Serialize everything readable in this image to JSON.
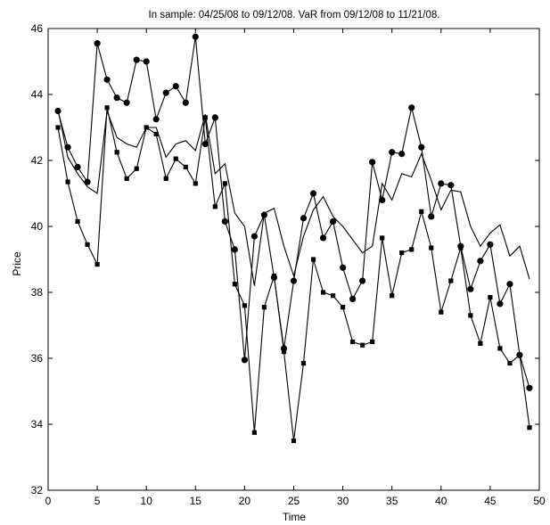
{
  "chart_data": {
    "type": "line",
    "title": "In sample: 04/25/08 to 09/12/08. VaR from 09/12/08 to 11/21/08.",
    "xlabel": "Time",
    "ylabel": "Price",
    "xlim": [
      0,
      50
    ],
    "ylim": [
      32,
      46
    ],
    "xticks": [
      0,
      5,
      10,
      15,
      20,
      25,
      30,
      35,
      40,
      45,
      50
    ],
    "yticks": [
      32,
      34,
      36,
      38,
      40,
      42,
      44,
      46
    ],
    "grid": false,
    "legend": "none",
    "x": [
      1,
      2,
      3,
      4,
      5,
      6,
      7,
      8,
      9,
      10,
      11,
      12,
      13,
      14,
      15,
      16,
      17,
      18,
      19,
      20,
      21,
      22,
      23,
      24,
      25,
      26,
      27,
      28,
      29,
      30,
      31,
      32,
      33,
      34,
      35,
      36,
      37,
      38,
      39,
      40,
      41,
      42,
      43,
      44,
      45,
      46,
      47,
      48,
      49
    ],
    "series": [
      {
        "marker": "circle",
        "values": [
          43.5,
          42.4,
          41.8,
          41.35,
          45.55,
          44.45,
          43.9,
          43.75,
          45.05,
          45.0,
          43.25,
          44.05,
          44.25,
          43.75,
          45.75,
          42.5,
          43.3,
          40.15,
          39.3,
          35.95,
          39.7,
          40.35,
          38.45,
          36.3,
          38.35,
          40.25,
          41.0,
          39.65,
          40.15,
          38.75,
          37.8,
          38.35,
          41.95,
          40.8,
          42.25,
          42.2,
          43.6,
          42.4,
          40.3,
          41.3,
          41.25,
          39.4,
          38.1,
          38.95,
          39.45,
          37.65,
          38.25,
          36.1,
          35.1
        ]
      },
      {
        "marker": "square",
        "values": [
          43.0,
          41.35,
          40.15,
          39.45,
          38.85,
          43.6,
          42.25,
          41.45,
          41.75,
          43.0,
          42.8,
          41.45,
          42.05,
          41.8,
          41.3,
          43.3,
          40.6,
          41.3,
          38.25,
          37.6,
          33.75,
          37.55,
          38.5,
          36.2,
          33.5,
          35.85,
          39.0,
          38.0,
          37.9,
          37.55,
          36.5,
          36.4,
          36.5,
          39.65,
          37.9,
          39.2,
          39.3,
          40.45,
          39.35,
          37.4,
          38.35,
          39.35,
          37.3,
          36.45,
          37.85,
          36.3,
          35.85,
          36.1,
          33.9
        ]
      },
      {
        "marker": "none",
        "values": [
          43.55,
          42.1,
          41.6,
          41.2,
          41.0,
          43.5,
          42.7,
          42.5,
          42.4,
          43.0,
          43.0,
          42.1,
          42.5,
          42.6,
          42.3,
          43.4,
          41.6,
          41.9,
          40.4,
          40.0,
          38.2,
          40.4,
          40.55,
          39.4,
          38.5,
          39.7,
          40.5,
          40.9,
          40.3,
          40.0,
          39.6,
          39.2,
          39.4,
          41.3,
          40.8,
          41.6,
          41.5,
          42.2,
          41.4,
          40.5,
          41.1,
          41.05,
          40.0,
          39.4,
          39.8,
          40.05,
          39.1,
          39.4,
          38.4
        ]
      }
    ]
  }
}
